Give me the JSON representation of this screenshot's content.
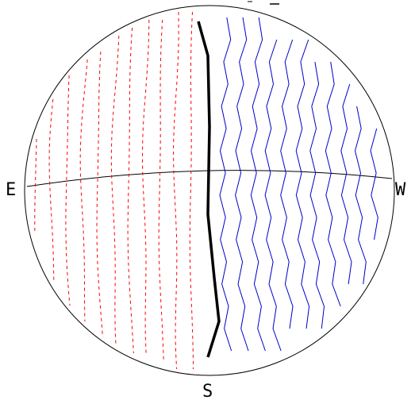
{
  "labels": {
    "east": "E",
    "west": "W",
    "south": "S"
  },
  "colors": {
    "background": "#ffffff",
    "outline": "#000000",
    "dashed_lines": "#ff0000",
    "solid_lines": "#0000cc",
    "central_line": "#000000"
  },
  "line_sets": {
    "dashed_red_count": 11,
    "solid_blue_count": 11,
    "central_black_count": 1
  }
}
